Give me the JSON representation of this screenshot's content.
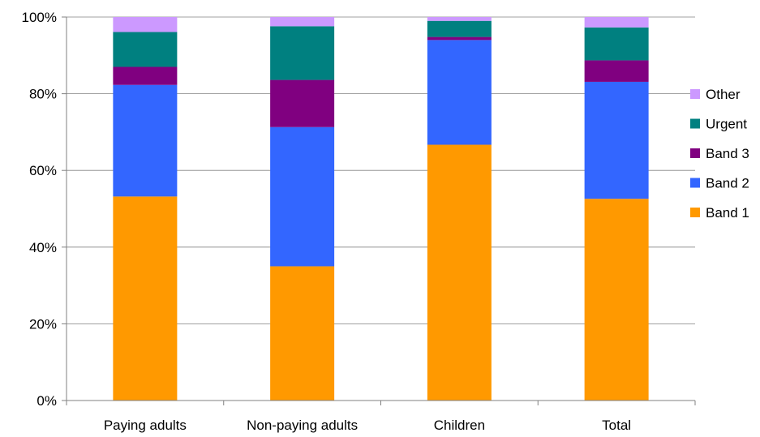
{
  "chart_data": {
    "type": "bar",
    "stacked": true,
    "percent": true,
    "categories": [
      "Paying adults",
      "Non-paying adults",
      "Children",
      "Total"
    ],
    "series": [
      {
        "name": "Band 1",
        "color": "#FF9900",
        "values": [
          53.2,
          35.0,
          66.7,
          52.6
        ]
      },
      {
        "name": "Band 2",
        "color": "#3366FF",
        "values": [
          29.1,
          36.3,
          27.3,
          30.5
        ]
      },
      {
        "name": "Band 3",
        "color": "#800080",
        "values": [
          4.7,
          12.3,
          0.8,
          5.6
        ]
      },
      {
        "name": "Urgent",
        "color": "#008080",
        "values": [
          9.1,
          14.0,
          4.2,
          8.6
        ]
      },
      {
        "name": "Other",
        "color": "#CC99FF",
        "values": [
          3.9,
          2.4,
          1.0,
          2.7
        ]
      }
    ],
    "y_ticks": [
      "0%",
      "20%",
      "40%",
      "60%",
      "80%",
      "100%"
    ],
    "ylim": [
      0,
      100
    ],
    "grid": true,
    "legend_position": "right",
    "legend_order": [
      "Other",
      "Urgent",
      "Band 3",
      "Band 2",
      "Band 1"
    ],
    "title": "",
    "xlabel": "",
    "ylabel": ""
  }
}
